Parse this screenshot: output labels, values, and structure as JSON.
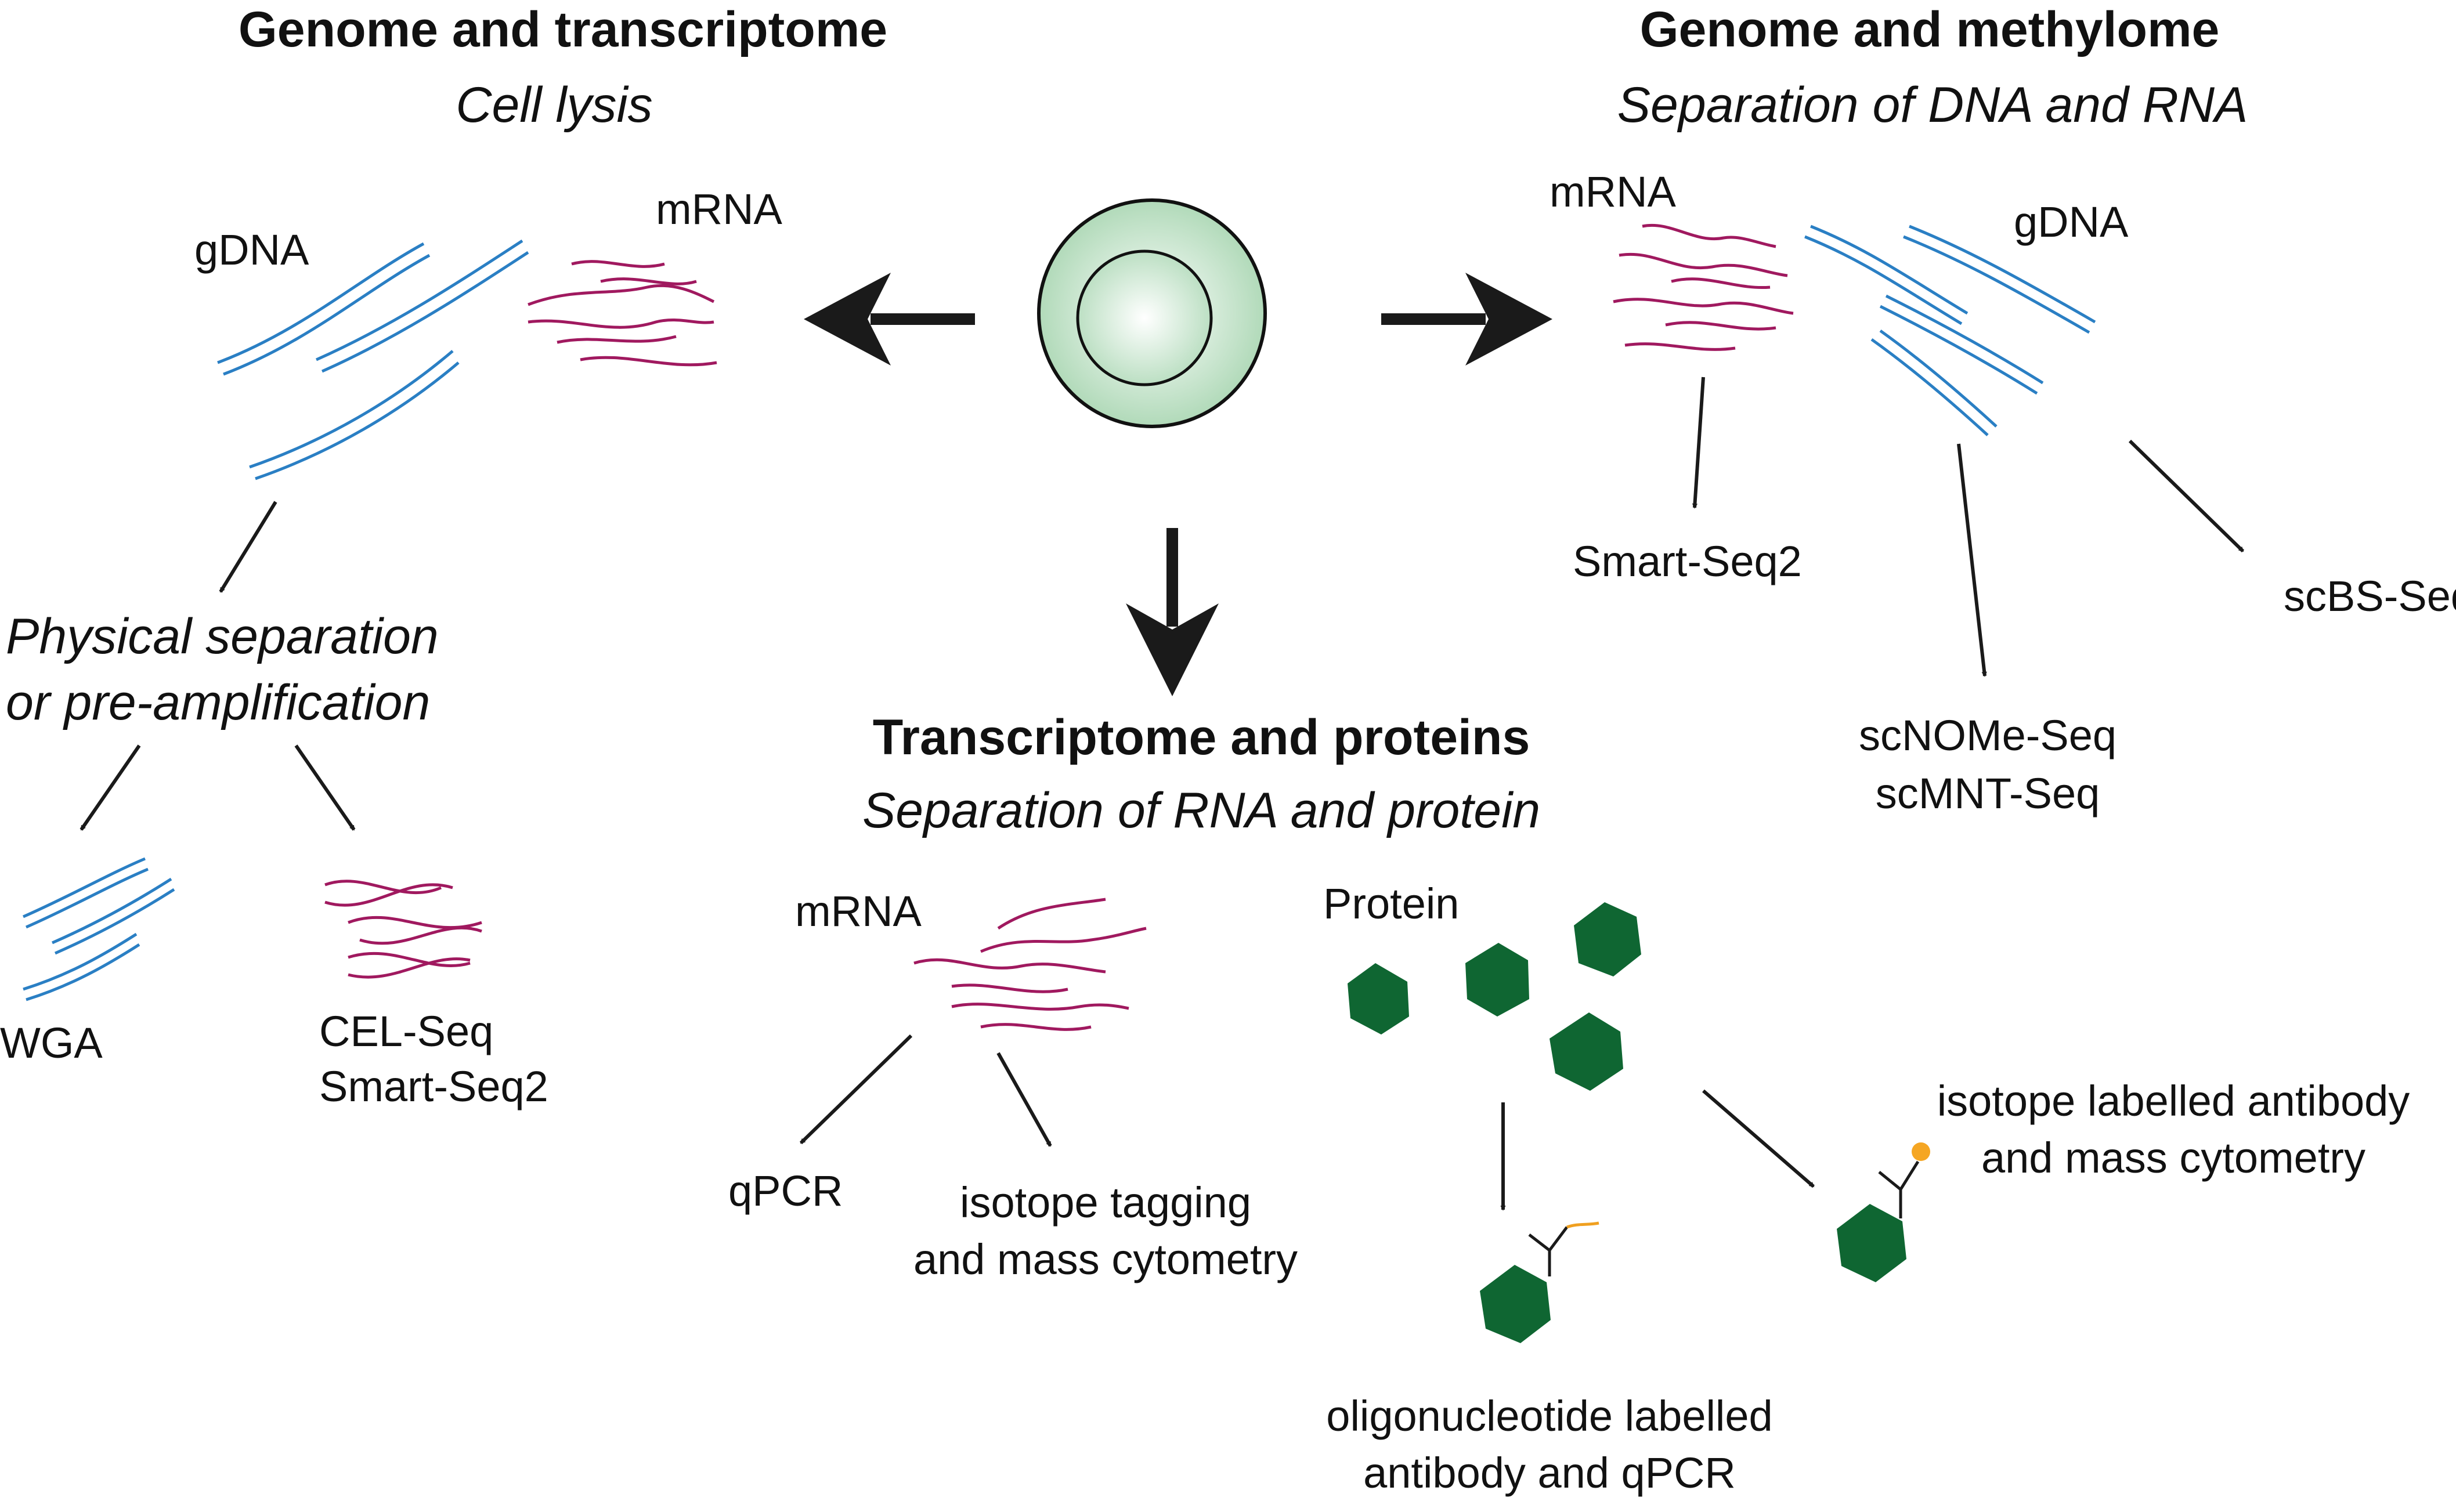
{
  "colors": {
    "gdna": "#2a7fc4",
    "mrna": "#a0195f",
    "protein": "#0f6632",
    "cell_fill": "#b7ddbf",
    "isotope_dot": "#f5a623",
    "oligo_tag": "#f0a020",
    "arrow": "#1a1a1a"
  },
  "sections": {
    "genome_transcriptome": {
      "title": "Genome and transcriptome",
      "subtitle": "Cell lysis"
    },
    "genome_methylome": {
      "title": "Genome and methylome",
      "subtitle": "Separation of DNA and RNA"
    },
    "transcriptome_proteins": {
      "title": "Transcriptome and proteins",
      "subtitle": "Separation of RNA and protein"
    }
  },
  "labels": {
    "left_gdna": "gDNA",
    "left_mrna": "mRNA",
    "physical_separation_line1": "Physical separation",
    "physical_separation_line2": "or pre-amplification",
    "wga": "WGA",
    "cel_seq": "CEL-Seq",
    "smart_seq2_left": "Smart-Seq2",
    "right_mrna": "mRNA",
    "right_gdna": "gDNA",
    "smart_seq2_right": "Smart-Seq2",
    "scnome_seq": "scNOMe-Seq",
    "scmnt_seq": "scMNT-Seq",
    "scbs_seq": "scBS-Seq",
    "bottom_mrna": "mRNA",
    "protein": "Protein",
    "qpcr": "qPCR",
    "isotope_tagging_line1": "isotope tagging",
    "isotope_tagging_line2": "and mass cytometry",
    "oligo_line1": "oligonucleotide labelled",
    "oligo_line2": "antibody and qPCR",
    "isotope_antibody_line1": "isotope labelled antibody",
    "isotope_antibody_line2": "and mass cytometry"
  },
  "icons": {
    "cell": "cell-icon",
    "gdna": "double-strand-dna-icon",
    "mrna": "single-strand-rna-icon",
    "protein": "hexagon-protein-icon",
    "antibody": "y-antibody-icon"
  }
}
